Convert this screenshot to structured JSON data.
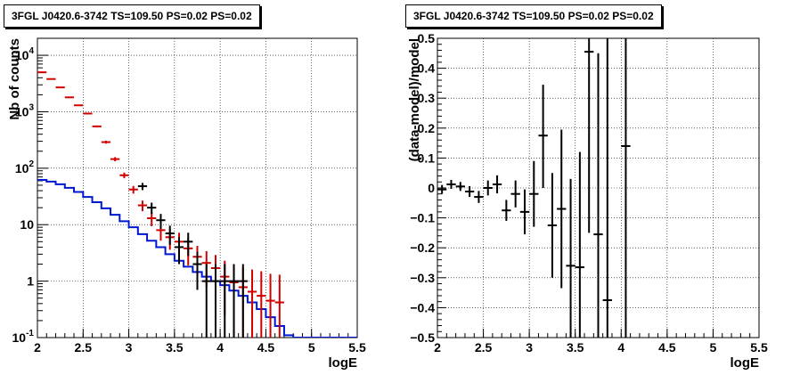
{
  "chart_data": [
    {
      "type": "line",
      "title": "3FGL J0420.6-3742 TS=109.50 PS=0.02 PS=0.02",
      "xlabel": "logE",
      "ylabel": "Nb of counts",
      "xlim": [
        2,
        5.5
      ],
      "ylim": [
        0.1,
        20000
      ],
      "yscale": "log",
      "grid": true,
      "x_ticks": [
        "2",
        "2.5",
        "3",
        "3.5",
        "4",
        "4.5",
        "5",
        "5.5"
      ],
      "y_ticks": [
        {
          "value": 0.1,
          "label": "10^-1"
        },
        {
          "value": 1,
          "label": "1"
        },
        {
          "value": 10,
          "label": "10"
        },
        {
          "value": 100,
          "label": "10^2"
        },
        {
          "value": 1000,
          "label": "10^3"
        },
        {
          "value": 10000,
          "label": "10^4"
        }
      ],
      "bin_edges": [
        2.0,
        2.1,
        2.2,
        2.3,
        2.4,
        2.5,
        2.6,
        2.7,
        2.8,
        2.9,
        3.0,
        3.1,
        3.2,
        3.3,
        3.4,
        3.5,
        3.6,
        3.7,
        3.8,
        3.9,
        4.0,
        4.1,
        4.2,
        4.3,
        4.4,
        4.5,
        4.6,
        4.7,
        4.8,
        4.9,
        5.0,
        5.1,
        5.2,
        5.3,
        5.4,
        5.5
      ],
      "series": [
        {
          "kind": "step",
          "color": "#0018d0",
          "values": [
            62,
            58,
            52,
            45,
            38,
            31,
            25,
            19.5,
            15,
            11.5,
            9,
            6.8,
            5.2,
            4.0,
            3.0,
            2.3,
            1.8,
            1.45,
            1.2,
            1.0,
            0.85,
            0.68,
            0.55,
            0.42,
            0.32,
            0.23,
            0.16,
            0.11,
            0.1,
            0.1,
            0.1,
            0.1,
            0.1,
            0.1,
            0.1
          ]
        },
        {
          "kind": "points",
          "color": "#d00000",
          "x": [
            2.05,
            2.15,
            2.25,
            2.35,
            2.45,
            2.55,
            2.65,
            2.75,
            2.85,
            2.95,
            3.05,
            3.15,
            3.25,
            3.35,
            3.45,
            3.55,
            3.65,
            3.75,
            3.85,
            3.95,
            4.05,
            4.15,
            4.25,
            4.35,
            4.45,
            4.55,
            4.65
          ],
          "y": [
            5000,
            3800,
            2700,
            1800,
            1300,
            930,
            550,
            290,
            145,
            75,
            42,
            22,
            13,
            8,
            6,
            5,
            3.8,
            2.7,
            2.1,
            1.7,
            1.2,
            0.95,
            0.78,
            0.65,
            0.55,
            0.45,
            0.42
          ],
          "ylow": [
            4930,
            3740,
            2650,
            1760,
            1265,
            900,
            527,
            273,
            133,
            66.5,
            35.5,
            17.3,
            9.4,
            5.2,
            3.6,
            2.8,
            1.9,
            1.2,
            0.8,
            0.55,
            0.25,
            0.1,
            0.1,
            0.1,
            0.1,
            0.1,
            0.1
          ],
          "yhigh": [
            5070,
            3860,
            2750,
            1840,
            1335,
            960,
            573,
            307,
            157,
            83.5,
            48.5,
            26.7,
            16.6,
            10.8,
            8.4,
            7.2,
            5.7,
            4.2,
            3.4,
            2.9,
            2.3,
            1.95,
            1.75,
            1.6,
            1.5,
            1.35,
            1.3
          ]
        },
        {
          "kind": "points",
          "color": "#000000",
          "x": [
            3.15,
            3.25,
            3.35,
            3.45,
            3.55,
            3.65,
            3.75,
            3.85,
            3.95,
            4.05,
            4.15,
            4.25
          ],
          "y": [
            48,
            20,
            12,
            7,
            4,
            5,
            2,
            1,
            1,
            1,
            1,
            1
          ],
          "ylow": [
            41,
            15.5,
            8.5,
            4.4,
            2.0,
            2.8,
            0.7,
            0.1,
            0.1,
            0.1,
            0.1,
            0.1
          ],
          "yhigh": [
            55,
            24.5,
            15.5,
            9.6,
            6.0,
            7.2,
            3.3,
            2.0,
            2.0,
            2.0,
            2.0,
            2.0
          ]
        }
      ]
    },
    {
      "type": "scatter",
      "title": "3FGL J0420.6-3742 TS=109.50 PS=0.02 PS=0.02",
      "xlabel": "logE",
      "ylabel": "(data-model)/model",
      "xlim": [
        2,
        5.5
      ],
      "ylim": [
        -0.5,
        0.5
      ],
      "grid": true,
      "x_ticks": [
        "2",
        "2.5",
        "3",
        "3.5",
        "4",
        "4.5",
        "5",
        "5.5"
      ],
      "y_ticks": [
        "-0.5",
        "-0.4",
        "-0.3",
        "-0.2",
        "-0.1",
        "0",
        "0.1",
        "0.2",
        "0.3",
        "0.4",
        "0.5"
      ],
      "series": [
        {
          "color": "#000000",
          "x": [
            2.05,
            2.15,
            2.25,
            2.35,
            2.45,
            2.55,
            2.65,
            2.75,
            2.85,
            2.95,
            3.05,
            3.15,
            3.25,
            3.35,
            3.45,
            3.55,
            3.65,
            3.75,
            3.85,
            4.05
          ],
          "y": [
            -0.005,
            0.012,
            0.005,
            -0.012,
            -0.03,
            0.0,
            0.012,
            -0.075,
            -0.02,
            -0.08,
            -0.02,
            0.175,
            -0.125,
            -0.07,
            -0.26,
            -0.265,
            0.455,
            -0.155,
            -0.375,
            0.14
          ],
          "ylow": [
            -0.02,
            -0.003,
            -0.01,
            -0.03,
            -0.05,
            -0.025,
            -0.018,
            -0.11,
            -0.065,
            -0.155,
            -0.13,
            0.0,
            -0.3,
            -0.335,
            -0.55,
            -0.55,
            -0.15,
            -0.55,
            -0.55,
            -0.55
          ],
          "yhigh": [
            0.01,
            0.027,
            0.02,
            0.006,
            -0.01,
            0.025,
            0.042,
            -0.04,
            0.025,
            -0.005,
            0.09,
            0.345,
            0.05,
            0.195,
            0.03,
            0.12,
            0.55,
            0.45,
            0.55,
            0.55
          ]
        }
      ]
    }
  ]
}
